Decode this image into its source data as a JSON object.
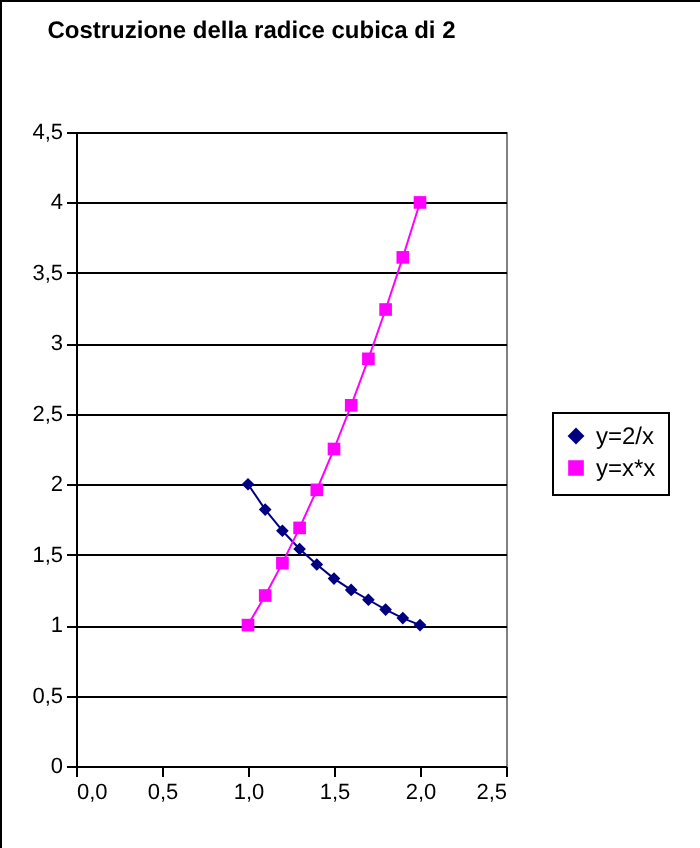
{
  "chart_data": {
    "type": "line",
    "title": "Costruzione della radice cubica di 2",
    "x": [
      1.0,
      1.1,
      1.2,
      1.3,
      1.4,
      1.5,
      1.6,
      1.7,
      1.8,
      1.9,
      2.0
    ],
    "series": [
      {
        "name": "y=2/x",
        "color": "#000080",
        "marker": "diamond",
        "values": [
          2,
          1.82,
          1.67,
          1.54,
          1.43,
          1.33,
          1.25,
          1.18,
          1.11,
          1.05,
          1
        ]
      },
      {
        "name": "y=x*x",
        "color": "#ff00ff",
        "marker": "square",
        "values": [
          1,
          1.21,
          1.44,
          1.69,
          1.96,
          2.25,
          2.56,
          2.89,
          3.24,
          3.61,
          4
        ]
      }
    ],
    "xlim": [
      0,
      2.5
    ],
    "xticks": [
      {
        "value": 0,
        "label": "0,0"
      },
      {
        "value": 0.5,
        "label": "0,5"
      },
      {
        "value": 1,
        "label": "1,0"
      },
      {
        "value": 1.5,
        "label": "1,5"
      },
      {
        "value": 2,
        "label": "2,0"
      },
      {
        "value": 2.5,
        "label": "2,5"
      }
    ],
    "ylim": [
      0,
      4.5
    ],
    "yticks": [
      0,
      {
        "value": 0.5,
        "label": "0,5"
      },
      1,
      {
        "value": 1.5,
        "label": "1,5"
      },
      2,
      {
        "value": 2.5,
        "label": "2,5"
      },
      3,
      {
        "value": 3.5,
        "label": "3,5"
      },
      4,
      {
        "value": 4.5,
        "label": "4,5"
      }
    ],
    "grid": "y",
    "legend": "right",
    "line_style": "solid"
  }
}
